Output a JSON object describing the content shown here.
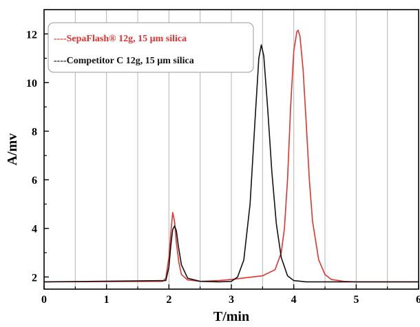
{
  "chart_data": {
    "type": "line",
    "xlabel": "T/min",
    "ylabel": "A/mv",
    "xlim": [
      0,
      6
    ],
    "ylim": [
      1.5,
      13
    ],
    "x_ticks": [
      0,
      1,
      2,
      3,
      4,
      5,
      6
    ],
    "x_tick_labels": [
      "0",
      "1",
      "2",
      "3",
      "4",
      "5",
      "6"
    ],
    "y_ticks": [
      2,
      4,
      6,
      8,
      10,
      12
    ],
    "y_tick_labels": [
      "2",
      "4",
      "6",
      "8",
      "10",
      "12"
    ],
    "vertical_grid": true,
    "vertical_grid_step": 0.5,
    "legend_position": "top-left",
    "series": [
      {
        "name": "----SepaFlash® 12g, 15 µm silica",
        "color": "#e53030",
        "x": [
          0,
          1.9,
          1.95,
          2.0,
          2.03,
          2.06,
          2.09,
          2.12,
          2.16,
          2.2,
          2.3,
          2.5,
          2.8,
          3.0,
          3.5,
          3.7,
          3.8,
          3.85,
          3.9,
          3.95,
          4.0,
          4.05,
          4.07,
          4.1,
          4.15,
          4.2,
          4.25,
          4.3,
          4.4,
          4.5,
          4.6,
          4.8,
          5.0,
          6.0
        ],
        "values": [
          1.8,
          1.82,
          1.95,
          2.8,
          3.8,
          4.65,
          4.3,
          3.4,
          2.6,
          2.1,
          1.88,
          1.82,
          1.85,
          1.9,
          2.05,
          2.3,
          3.0,
          4.0,
          6.0,
          9.0,
          11.3,
          12.1,
          12.15,
          11.9,
          10.5,
          8.3,
          6.0,
          4.3,
          2.7,
          2.1,
          1.9,
          1.82,
          1.8,
          1.8
        ]
      },
      {
        "name": "----Competitor C 12g, 15 µm silica",
        "color": "#111111",
        "x": [
          0,
          1.95,
          2.0,
          2.03,
          2.06,
          2.09,
          2.12,
          2.15,
          2.2,
          2.3,
          2.5,
          2.8,
          3.0,
          3.1,
          3.2,
          3.3,
          3.38,
          3.44,
          3.48,
          3.52,
          3.58,
          3.65,
          3.72,
          3.8,
          3.9,
          4.0,
          4.2,
          6.0
        ],
        "values": [
          1.8,
          1.85,
          2.4,
          3.3,
          3.95,
          4.1,
          3.9,
          3.3,
          2.5,
          1.95,
          1.82,
          1.8,
          1.82,
          2.0,
          2.7,
          5.0,
          8.5,
          11.0,
          11.55,
          11.1,
          9.0,
          6.3,
          4.2,
          2.8,
          2.05,
          1.85,
          1.8,
          1.8
        ]
      }
    ]
  }
}
